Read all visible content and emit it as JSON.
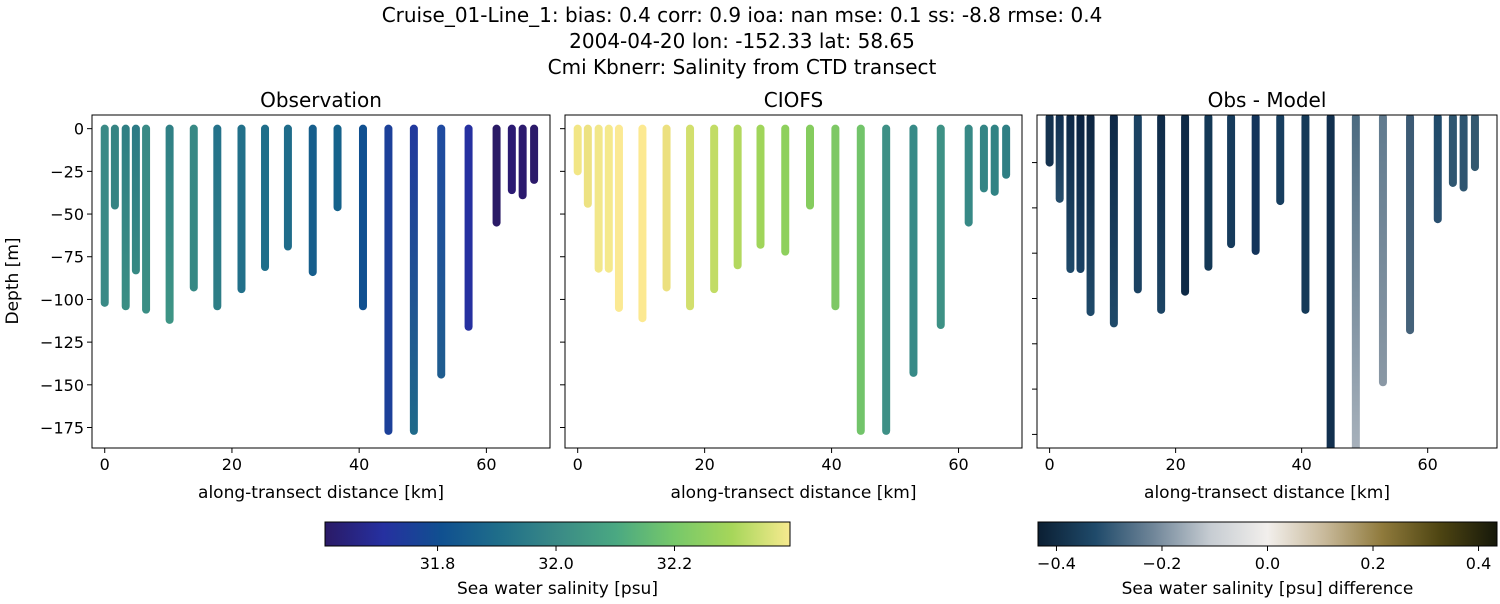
{
  "title_lines": [
    "Cruise_01-Line_1: bias: 0.4  corr: 0.9  ioa: nan  mse: 0.1  ss: -8.8  rmse: 0.4",
    "2004-04-20 lon: -152.33 lat: 58.65",
    "Cmi Kbnerr: Salinity from CTD transect"
  ],
  "chart_data": [
    {
      "type": "scatter",
      "title": "Observation",
      "xlabel": "along-transect distance [km]",
      "ylabel": "Depth [m]",
      "xlim": [
        -2,
        70
      ],
      "ylim": [
        -187,
        8
      ],
      "xticks": [
        0,
        20,
        40,
        60
      ],
      "yticks": [
        0,
        -25,
        -50,
        -75,
        -100,
        -125,
        -150,
        -175
      ],
      "show_ytick_labels": true,
      "stations_km": [
        0,
        1.6,
        3.3,
        4.9,
        6.5,
        10.2,
        14.0,
        17.7,
        21.5,
        25.2,
        28.8,
        32.7,
        36.6,
        40.6,
        44.6,
        48.6,
        52.9,
        57.2,
        61.6,
        64.0,
        65.7,
        67.5
      ],
      "max_depth_m": [
        -102,
        -45,
        -104,
        -83,
        -106,
        -112,
        -93,
        -104,
        -94,
        -81,
        -69,
        -84,
        -46,
        -104,
        -177,
        -177,
        -144,
        -116,
        -55,
        -36,
        -39,
        -30
      ],
      "colors_top": [
        "#3a8a86",
        "#368483",
        "#2f7f84",
        "#2c7a85",
        "#3a8a86",
        "#2f7f85",
        "#388985",
        "#24728a",
        "#22708a",
        "#1f6e8a",
        "#1f6c8a",
        "#165e8c",
        "#15628b",
        "#105090",
        "#1c4099",
        "#21389d",
        "#1f4aa0",
        "#2630a0",
        "#2a1a66",
        "#2b1a72",
        "#2c1a6e",
        "#2b1a6a"
      ],
      "colors_bottom": [
        "#3a8a86",
        "#368483",
        "#3a8e84",
        "#368983",
        "#3a8e84",
        "#3e9585",
        "#368984",
        "#2e7e86",
        "#22708a",
        "#1f6e8a",
        "#1f6c8a",
        "#165e8c",
        "#15628b",
        "#105090",
        "#1c4099",
        "#1f6a8a",
        "#1f5d8f",
        "#2630a0",
        "#2a1a66",
        "#2b1a72",
        "#2c1a6e",
        "#2b1a6a"
      ]
    },
    {
      "type": "scatter",
      "title": "CIOFS",
      "xlabel": "along-transect distance [km]",
      "xlim": [
        -2,
        70
      ],
      "ylim": [
        -187,
        8
      ],
      "xticks": [
        0,
        20,
        40,
        60
      ],
      "yticks": [
        0,
        -25,
        -50,
        -75,
        -100,
        -125,
        -150,
        -175
      ],
      "show_ytick_labels": false,
      "stations_km": [
        0,
        1.6,
        3.3,
        4.9,
        6.5,
        10.2,
        14.0,
        17.7,
        21.5,
        25.2,
        28.8,
        32.7,
        36.6,
        40.6,
        44.6,
        48.6,
        52.9,
        57.2,
        61.6,
        64.0,
        65.7,
        67.5
      ],
      "max_depth_m": [
        -25,
        -44,
        -82,
        -82,
        -105,
        -111,
        -93,
        -104,
        -94,
        -80,
        -68,
        -72,
        -45,
        -104,
        -177,
        -177,
        -143,
        -115,
        -55,
        -35,
        -37,
        -27
      ],
      "colors_top": [
        "#f2e685",
        "#ede282",
        "#f2e78a",
        "#f5e98c",
        "#fbe993",
        "#fce991",
        "#ece07f",
        "#d2df6d",
        "#c2dc65",
        "#b3d85f",
        "#a0d55a",
        "#8ed05d",
        "#85cc5e",
        "#7ec865",
        "#72c46a",
        "#3e9086",
        "#378a87",
        "#3d9185",
        "#378986",
        "#338585",
        "#308384",
        "#2f7f84"
      ],
      "colors_bottom": [
        "#f2e685",
        "#ede282",
        "#f2e78a",
        "#f5e98c",
        "#fbe993",
        "#fce991",
        "#ece07f",
        "#d2df6d",
        "#c2dc65",
        "#b3d85f",
        "#a0d55a",
        "#8ed05d",
        "#85cc5e",
        "#7ec865",
        "#72c46a",
        "#3e9086",
        "#378a87",
        "#3d9185",
        "#378986",
        "#338585",
        "#308384",
        "#2f7f84"
      ]
    },
    {
      "type": "scatter",
      "title": "Obs - Model",
      "xlabel": "along-transect distance [km]",
      "xlim": [
        -2,
        71
      ],
      "ylim": [
        -146,
        1
      ],
      "xticks": [
        0,
        20,
        40,
        60
      ],
      "yticks": [
        -20,
        -40,
        -60,
        -80,
        -100,
        -120,
        -140
      ],
      "show_ytick_labels": false,
      "stations_km": [
        0,
        1.6,
        3.3,
        4.9,
        6.5,
        10.2,
        14.0,
        17.7,
        21.5,
        25.2,
        28.8,
        32.7,
        36.6,
        40.6,
        44.6,
        48.6,
        52.9,
        57.2,
        61.6,
        64.0,
        65.7,
        67.5
      ],
      "max_depth_m": [
        -20,
        -36,
        -67,
        -67,
        -86,
        -91,
        -76,
        -85,
        -77,
        -66,
        -56,
        -59,
        -37,
        -85,
        -150,
        -150,
        -117,
        -94,
        -45,
        -29,
        -31,
        -22
      ],
      "colors_top": [
        "#14324f",
        "#123050",
        "#0e2846",
        "#0a2240",
        "#0c2440",
        "#0e2846",
        "#1b4262",
        "#0f2b48",
        "#0e2a46",
        "#143856",
        "#163b5c",
        "#13345a",
        "#173e5f",
        "#153a58",
        "#12304f",
        "#4a6a80",
        "#607a8e",
        "#3b5a74",
        "#1f4a6a",
        "#2f5670",
        "#2e5570",
        "#33586f"
      ],
      "colors_bottom": [
        "#14324f",
        "#274e6c",
        "#1f4a6a",
        "#1a4264",
        "#1f4a6a",
        "#1f4a6a",
        "#1b4262",
        "#1c4464",
        "#0e2a46",
        "#143856",
        "#163b5c",
        "#13345a",
        "#173e5f",
        "#153a58",
        "#12304f",
        "#aab3bd",
        "#8a98a5",
        "#45627a",
        "#2a5070",
        "#2f5670",
        "#2e5570",
        "#33586f"
      ]
    }
  ],
  "colorbars": [
    {
      "label": "Sea water salinity [psu]",
      "range": [
        31.61,
        32.395
      ],
      "ticks": [
        "31.8",
        "32.0",
        "32.2"
      ],
      "colors": [
        "#2a1a66",
        "#2630a0",
        "#105090",
        "#1f6e8a",
        "#3a8a86",
        "#4aa882",
        "#76c86a",
        "#a6d65a",
        "#f7ea8f"
      ]
    },
    {
      "label": "Sea water salinity [psu] difference",
      "range": [
        -0.435,
        0.435
      ],
      "ticks": [
        "−0.4",
        "−0.2",
        "0.0",
        "0.2",
        "0.4"
      ],
      "colors": [
        "#0b1f33",
        "#1f4a6a",
        "#6f8598",
        "#c6ccd2",
        "#f2efec",
        "#c8b99a",
        "#8f7a3c",
        "#4e4512",
        "#16180a"
      ]
    }
  ]
}
